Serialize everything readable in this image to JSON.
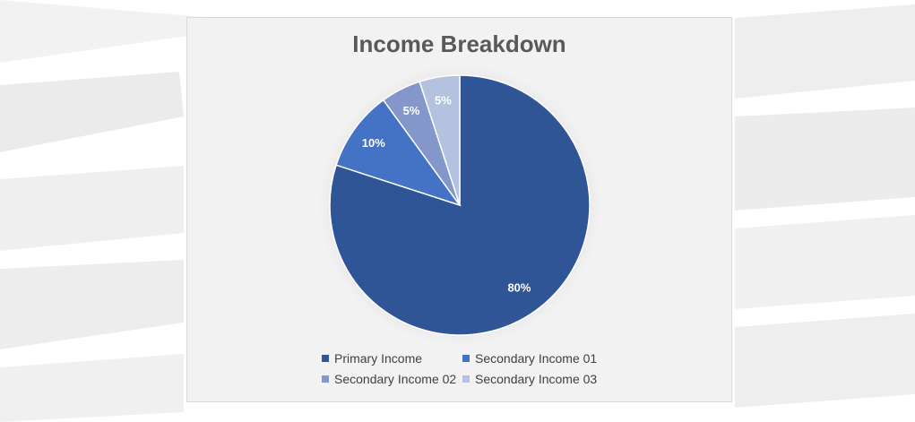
{
  "chart_data": {
    "type": "pie",
    "title": "Income Breakdown",
    "categories": [
      "Primary Income",
      "Secondary Income 01",
      "Secondary Income 02",
      "Secondary Income 03"
    ],
    "values": [
      80,
      10,
      5,
      5
    ],
    "labels": [
      "80%",
      "10%",
      "5%",
      "5%"
    ],
    "colors": [
      "#2f5597",
      "#4472c4",
      "#8497cb",
      "#b4c2e0"
    ],
    "legend_position": "bottom"
  }
}
